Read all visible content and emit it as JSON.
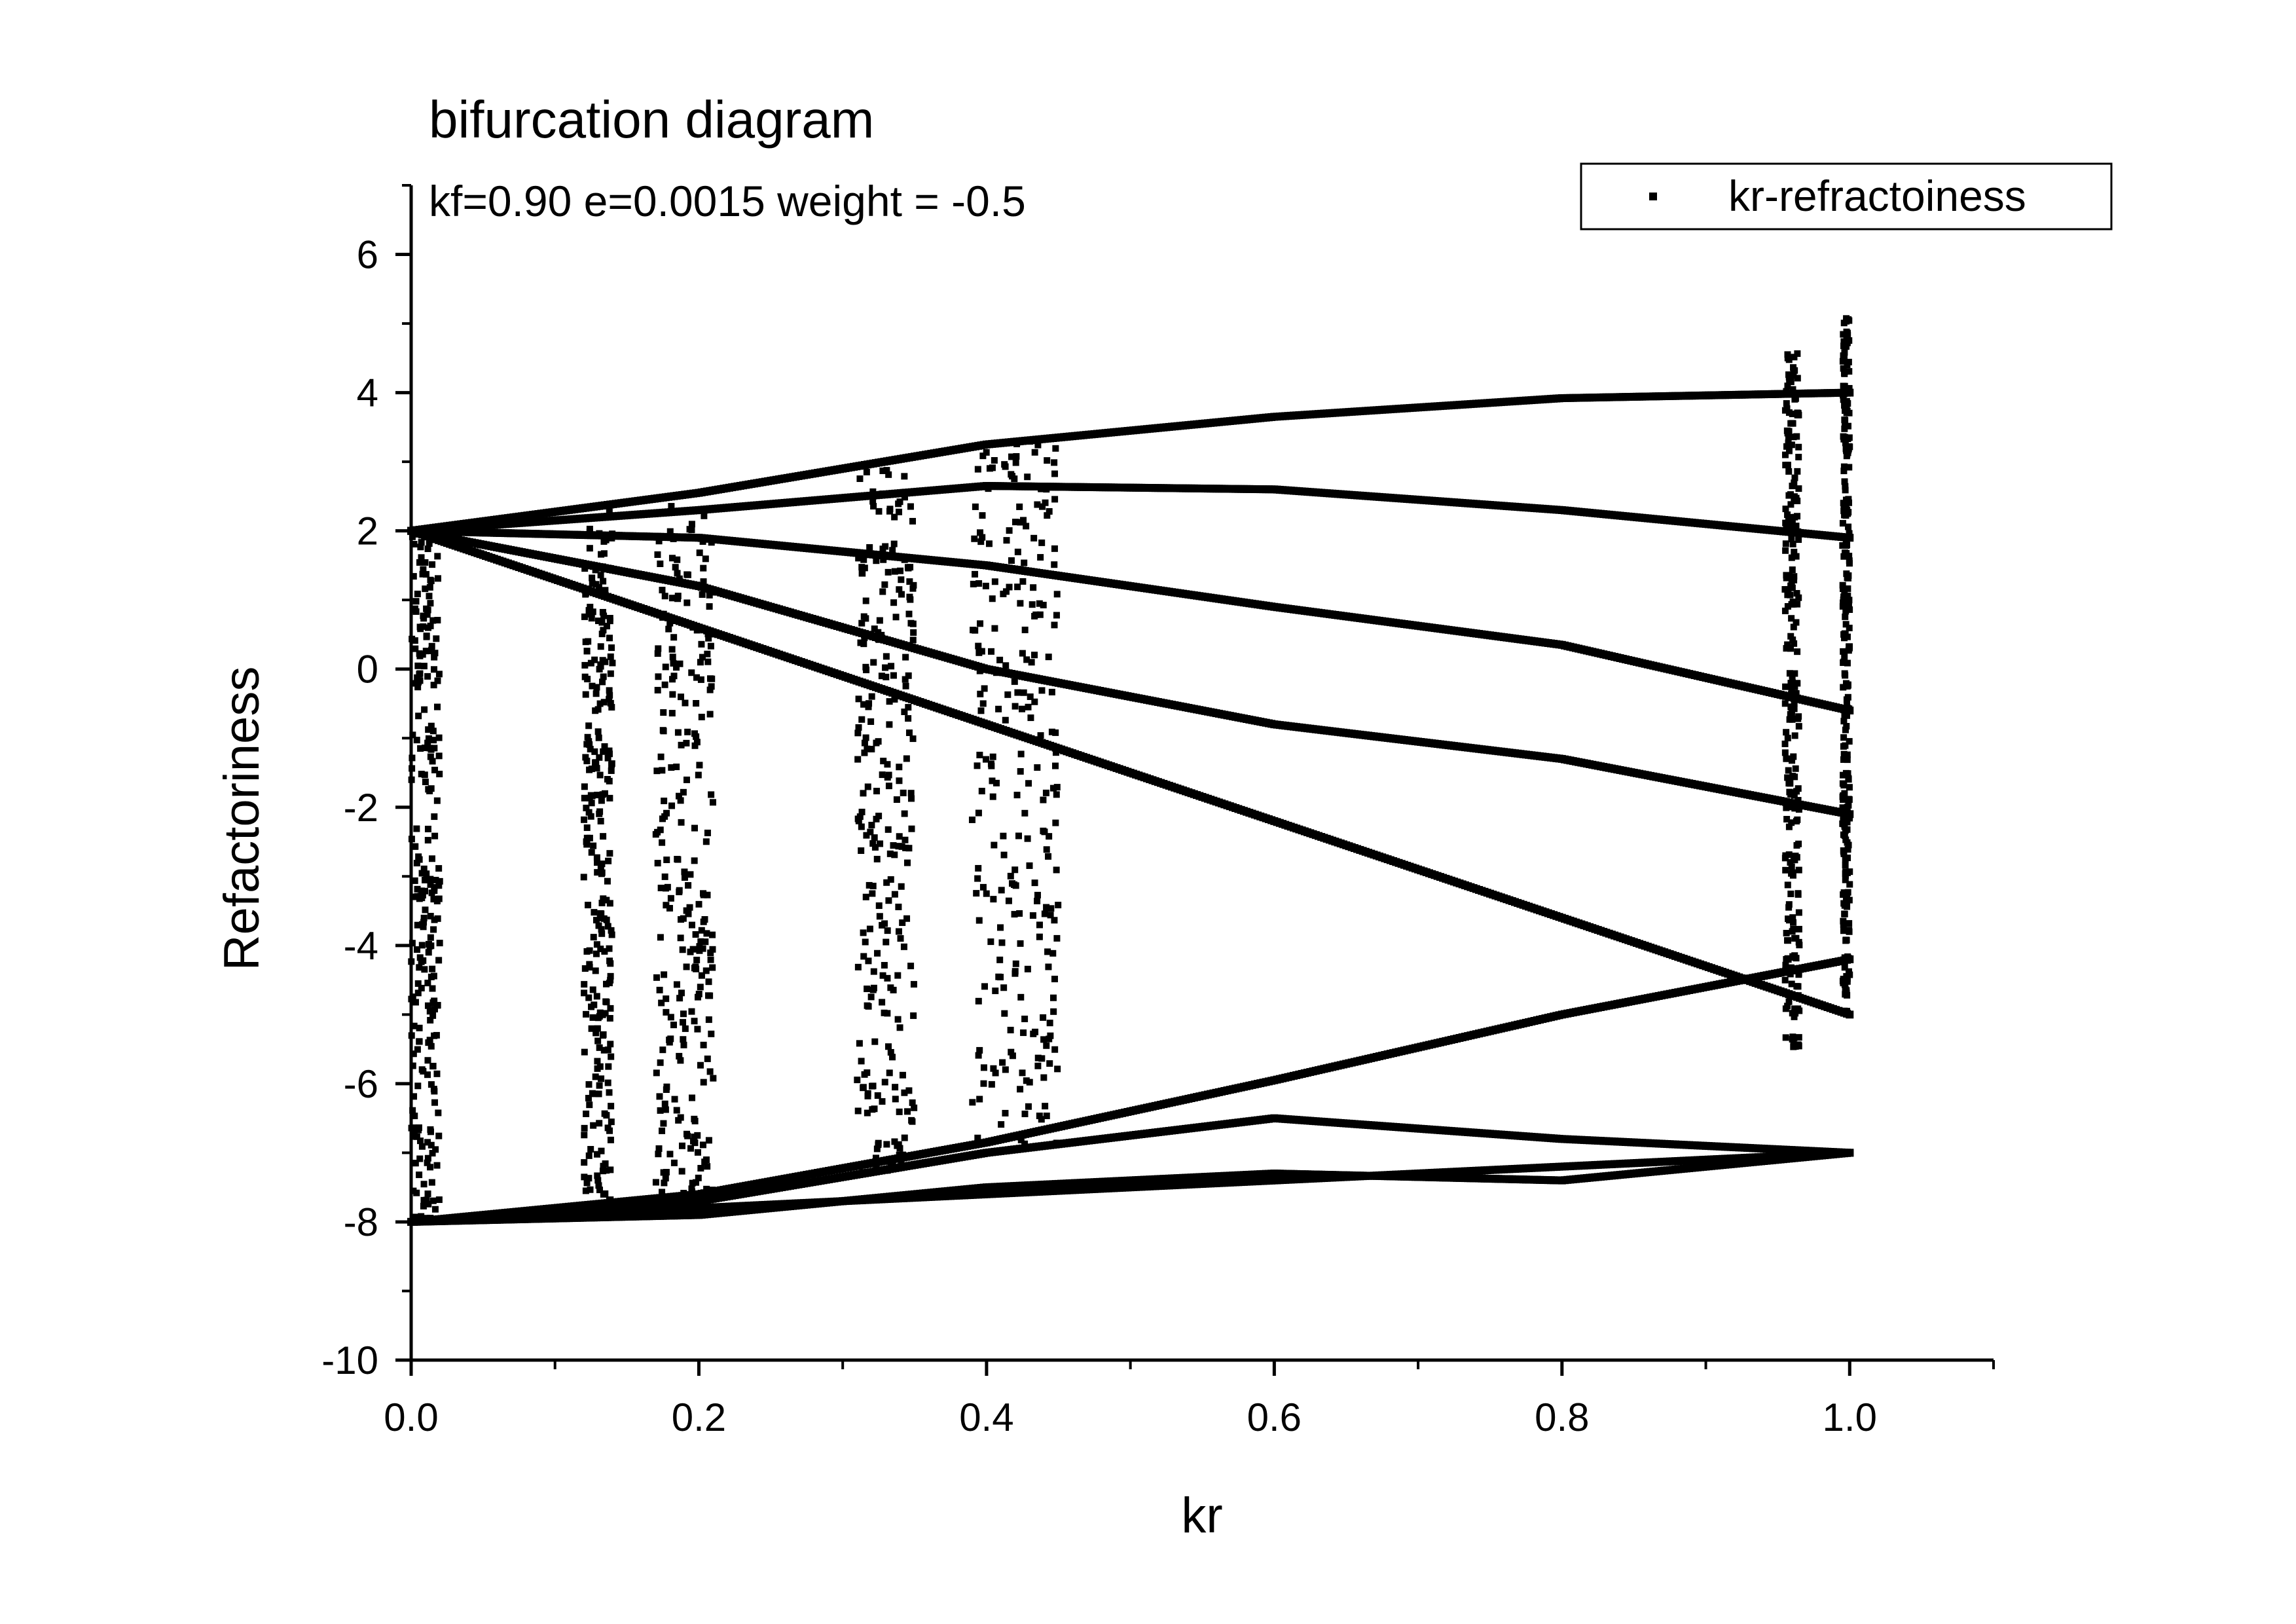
{
  "chart_data": {
    "type": "scatter",
    "title": "bifurcation diagram",
    "subtitle": "kf=0.90 e=0.0015 weight = -0.5",
    "xlabel": "kr",
    "ylabel": "Refactoriness",
    "xlim": [
      0.0,
      1.1
    ],
    "ylim": [
      -10,
      7
    ],
    "xticks": [
      0.0,
      0.2,
      0.4,
      0.6,
      0.8,
      1.0
    ],
    "xtick_labels": [
      "0.0",
      "0.2",
      "0.4",
      "0.6",
      "0.8",
      "1.0"
    ],
    "yticks": [
      -10,
      -8,
      -6,
      -4,
      -2,
      0,
      2,
      4,
      6
    ],
    "ytick_labels": [
      "-10",
      "-8",
      "-6",
      "-4",
      "-2",
      "0",
      "2",
      "4",
      "6"
    ],
    "grid": false,
    "legend_position": "top-right",
    "series": [
      {
        "name": "kr-refractoiness",
        "marker": "square",
        "color": "#000000",
        "branches": [
          {
            "x": [
              0.0,
              0.2,
              0.4,
              0.6,
              0.8,
              1.0
            ],
            "y": [
              2.0,
              2.55,
              3.25,
              3.65,
              3.92,
              4.0
            ]
          },
          {
            "x": [
              0.0,
              0.2,
              0.4,
              0.6,
              0.8,
              1.0
            ],
            "y": [
              2.0,
              0.6,
              -0.8,
              -2.2,
              -3.6,
              -5.0
            ]
          },
          {
            "x": [
              0.0,
              0.2,
              0.4,
              0.6,
              0.8,
              1.0
            ],
            "y": [
              -8.0,
              -7.6,
              -6.85,
              -5.95,
              -5.0,
              -4.2
            ]
          },
          {
            "x": [
              0.0,
              0.2,
              0.4,
              0.6,
              0.8,
              1.0
            ],
            "y": [
              -8.0,
              -7.8,
              -7.6,
              -7.4,
              -7.2,
              -7.0
            ]
          },
          {
            "x": [
              0.0,
              0.2,
              0.4,
              0.6,
              0.8,
              1.0
            ],
            "y": [
              2.0,
              2.3,
              2.65,
              2.6,
              2.3,
              1.9
            ]
          },
          {
            "x": [
              0.0,
              0.2,
              0.4,
              0.6,
              0.8,
              1.0
            ],
            "y": [
              2.0,
              1.9,
              1.5,
              0.9,
              0.35,
              -0.6
            ]
          },
          {
            "x": [
              0.0,
              0.2,
              0.4,
              0.6,
              0.8,
              1.0
            ],
            "y": [
              2.0,
              1.2,
              0.0,
              -0.8,
              -1.3,
              -2.1
            ]
          },
          {
            "x": [
              0.0,
              0.2,
              0.4,
              0.6,
              0.8,
              1.0
            ],
            "y": [
              -8.0,
              -7.7,
              -7.0,
              -6.5,
              -6.8,
              -7.0
            ]
          },
          {
            "x": [
              0.0,
              0.2,
              0.4,
              0.6,
              0.8,
              1.0
            ],
            "y": [
              -8.0,
              -7.9,
              -7.5,
              -7.3,
              -7.4,
              -7.0
            ]
          }
        ],
        "chaotic_bands": [
          {
            "x_from": 0.0,
            "x_to": 0.02,
            "y_min": -8.0,
            "y_max": 2.0
          },
          {
            "x_from": 0.12,
            "x_to": 0.14,
            "y_min": -7.8,
            "y_max": 2.3
          },
          {
            "x_from": 0.17,
            "x_to": 0.21,
            "y_min": -7.6,
            "y_max": 2.4
          },
          {
            "x_from": 0.31,
            "x_to": 0.35,
            "y_min": -7.3,
            "y_max": 2.9
          },
          {
            "x_from": 0.39,
            "x_to": 0.45,
            "y_min": -6.9,
            "y_max": 3.3
          },
          {
            "x_from": 0.955,
            "x_to": 0.965,
            "y_min": -5.5,
            "y_max": 4.6
          },
          {
            "x_from": 0.995,
            "x_to": 1.0,
            "y_min": -5.0,
            "y_max": 5.1
          }
        ]
      }
    ]
  }
}
